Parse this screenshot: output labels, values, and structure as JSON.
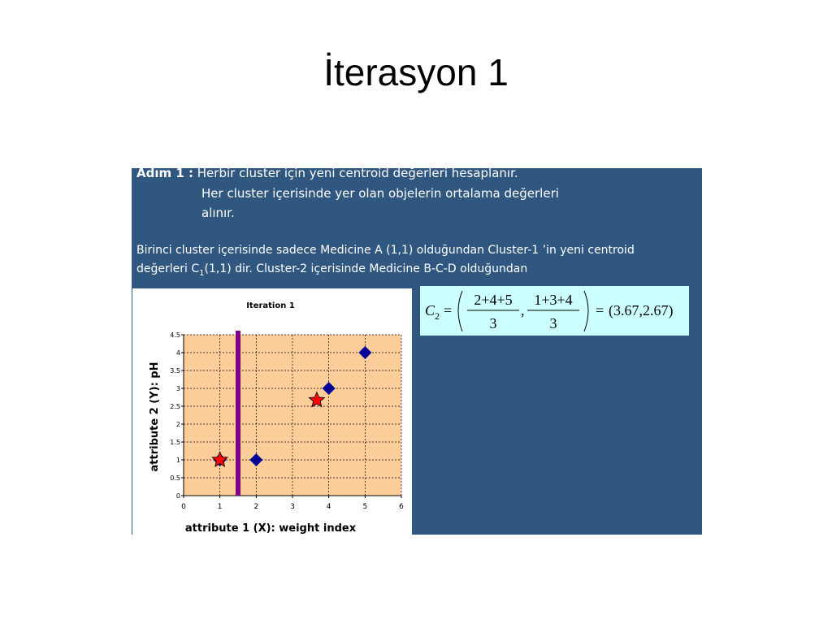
{
  "title": "İterasyon 1",
  "panel": {
    "step_label": "Adım 1 :",
    "step_lines": [
      "Herbir cluster için yeni centroid değerleri hesaplanır.",
      "Her cluster içerisinde yer olan objelerin ortalama değerleri",
      "alınır."
    ],
    "para_line1": "Birinci cluster içerisinde sadece Medicine A (1,1) olduğundan Cluster-1 ’in yeni centroid",
    "para_line2_start": "değerleri C",
    "para_line2_sub": "1",
    "para_line2_end": "(1,1) dir. Cluster-2 içerisinde Medicine B-C-D olduğundan"
  },
  "formula": {
    "lhs": "C",
    "lhs_sub": "2",
    "eq": "=",
    "num1": "2+4+5",
    "den1": "3",
    "comma": ",",
    "num2": "1+3+4",
    "den2": "3",
    "rhs": "(3.67,2.67)"
  },
  "chart_data": {
    "type": "scatter",
    "title": "Iteration 1",
    "x_label": "attribute 1 (X): weight index",
    "y_label": "attribute 2 (Y): pH",
    "xlim": [
      0,
      6
    ],
    "xticks": [
      0,
      1,
      2,
      3,
      4,
      5,
      6
    ],
    "ylim": [
      0,
      4.5
    ],
    "yticks": [
      0,
      0.5,
      1,
      1.5,
      2,
      2.5,
      3,
      3.5,
      4,
      4.5
    ],
    "grid": true,
    "series": [
      {
        "marker": "diamond",
        "color": "#000099",
        "x": [
          1,
          2,
          4,
          5
        ],
        "values": [
          1,
          1,
          3,
          4
        ]
      },
      {
        "marker": "star",
        "color": "#ff0000",
        "x": [
          1,
          3.67
        ],
        "values": [
          1,
          2.67
        ]
      }
    ],
    "vlines": [
      {
        "x": 1.5,
        "color": "#800080"
      }
    ]
  }
}
